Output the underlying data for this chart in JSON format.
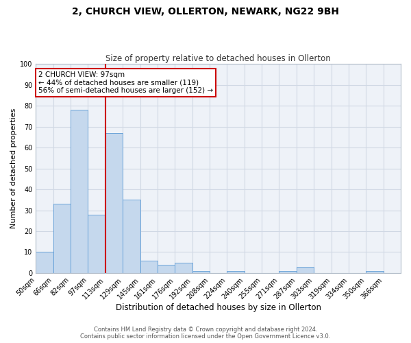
{
  "title": "2, CHURCH VIEW, OLLERTON, NEWARK, NG22 9BH",
  "subtitle": "Size of property relative to detached houses in Ollerton",
  "xlabel": "Distribution of detached houses by size in Ollerton",
  "ylabel": "Number of detached properties",
  "bin_labels": [
    "50sqm",
    "66sqm",
    "82sqm",
    "97sqm",
    "113sqm",
    "129sqm",
    "145sqm",
    "161sqm",
    "176sqm",
    "192sqm",
    "208sqm",
    "224sqm",
    "240sqm",
    "255sqm",
    "271sqm",
    "287sqm",
    "303sqm",
    "319sqm",
    "334sqm",
    "350sqm",
    "366sqm"
  ],
  "bar_values": [
    10,
    33,
    78,
    28,
    67,
    35,
    6,
    4,
    5,
    1,
    0,
    1,
    0,
    0,
    1,
    3,
    0,
    0,
    0,
    1,
    0
  ],
  "bar_color": "#c5d8ed",
  "bar_edge_color": "#5b9bd5",
  "grid_color": "#d0d8e4",
  "bg_color": "#eef2f8",
  "marker_line_x_label": "97sqm",
  "marker_line_color": "#cc0000",
  "annotation_title": "2 CHURCH VIEW: 97sqm",
  "annotation_line1": "← 44% of detached houses are smaller (119)",
  "annotation_line2": "56% of semi-detached houses are larger (152) →",
  "annotation_box_color": "#ffffff",
  "annotation_border_color": "#cc0000",
  "ylim": [
    0,
    100
  ],
  "yticks": [
    0,
    10,
    20,
    30,
    40,
    50,
    60,
    70,
    80,
    90,
    100
  ],
  "footer_line1": "Contains HM Land Registry data © Crown copyright and database right 2024.",
  "footer_line2": "Contains public sector information licensed under the Open Government Licence v3.0.",
  "title_fontsize": 10,
  "subtitle_fontsize": 8.5,
  "xlabel_fontsize": 8.5,
  "ylabel_fontsize": 8,
  "tick_fontsize": 7,
  "footer_fontsize": 6,
  "annotation_fontsize": 7.5
}
